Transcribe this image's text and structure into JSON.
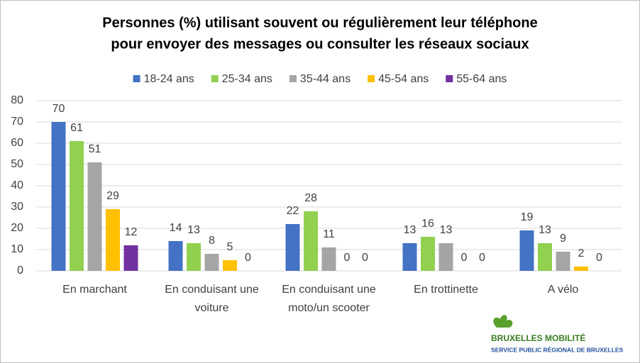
{
  "chart_data": {
    "type": "bar",
    "title": [
      "Personnes (%) utilisant souvent ou régulièrement leur téléphone",
      "pour envoyer des messages ou consulter les réseaux sociaux"
    ],
    "categories": [
      "En marchant",
      "En conduisant une voiture",
      "En conduisant une moto/un scooter",
      "En trottinette",
      "A vélo"
    ],
    "series": [
      {
        "name": "18-24 ans",
        "color": "#4472c4",
        "values": [
          70,
          14,
          22,
          13,
          19
        ]
      },
      {
        "name": "25-34 ans",
        "color": "#92d050",
        "values": [
          61,
          13,
          28,
          16,
          13
        ]
      },
      {
        "name": "35-44 ans",
        "color": "#a5a5a5",
        "values": [
          51,
          8,
          11,
          13,
          9
        ]
      },
      {
        "name": "45-54 ans",
        "color": "#ffc000",
        "values": [
          29,
          5,
          0,
          0,
          2
        ]
      },
      {
        "name": "55-64 ans",
        "color": "#7030a0",
        "values": [
          12,
          0,
          0,
          0,
          0
        ]
      }
    ],
    "ylim": [
      0,
      80
    ],
    "yticks": [
      0,
      10,
      20,
      30,
      40,
      50,
      60,
      70,
      80
    ],
    "grid": true,
    "legend": "top"
  },
  "logo": {
    "name": "BRUXELLES MOBILITÉ",
    "subtitle": "SERVICE PUBLIC RÉGIONAL DE BRUXELLES"
  }
}
